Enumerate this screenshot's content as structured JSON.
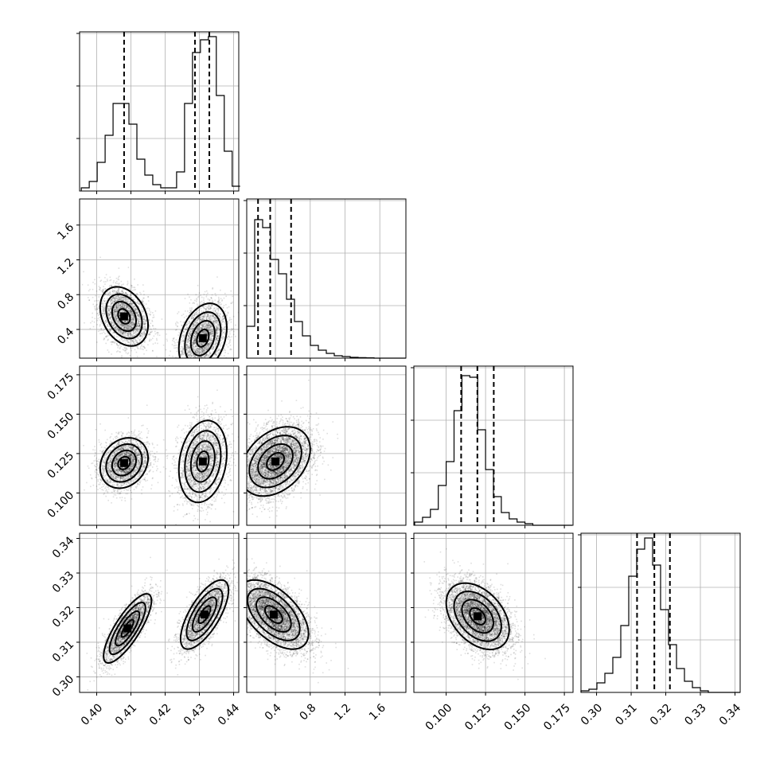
{
  "chart_data": {
    "type": "corner",
    "parameters": [
      {
        "id": "p0",
        "range": [
          0.395,
          0.4415
        ],
        "ticks": [
          "0.40",
          "0.41",
          "0.42",
          "0.43",
          "0.44"
        ],
        "hist_edges_start": 0.3955,
        "hist_bin_width": 0.00232,
        "hist_counts": [
          0.02,
          0.06,
          0.18,
          0.35,
          0.55,
          0.55,
          0.42,
          0.2,
          0.1,
          0.04,
          0.02,
          0.02,
          0.12,
          0.55,
          0.87,
          0.95,
          0.97,
          0.6,
          0.25,
          0.03
        ],
        "quantiles": [
          0.408,
          0.4287,
          0.4329
        ]
      },
      {
        "id": "p1",
        "range": [
          0.07,
          1.9
        ],
        "ticks": [
          "0.4",
          "0.8",
          "1.2",
          "1.6"
        ],
        "hist_edges_start": 0.07,
        "hist_bin_width": 0.0915,
        "hist_counts": [
          0.2,
          0.87,
          0.82,
          0.62,
          0.53,
          0.37,
          0.23,
          0.14,
          0.08,
          0.05,
          0.03,
          0.015,
          0.01,
          0.005,
          0.003,
          0.002,
          0,
          0,
          0,
          0
        ],
        "quantiles": [
          0.2,
          0.34,
          0.58
        ]
      },
      {
        "id": "p2",
        "range": [
          0.0795,
          0.1805
        ],
        "ticks": [
          "0.100",
          "0.125",
          "0.150",
          "0.175"
        ],
        "hist_edges_start": 0.08,
        "hist_bin_width": 0.005,
        "hist_counts": [
          0.02,
          0.05,
          0.1,
          0.25,
          0.4,
          0.72,
          0.94,
          0.93,
          0.6,
          0.35,
          0.18,
          0.08,
          0.04,
          0.02,
          0.01,
          0,
          0,
          0,
          0,
          0
        ],
        "quantiles": [
          0.1095,
          0.1198,
          0.1302
        ]
      },
      {
        "id": "p3",
        "range": [
          0.2955,
          0.3415
        ],
        "ticks": [
          "0.30",
          "0.31",
          "0.32",
          "0.33",
          "0.34"
        ],
        "hist_edges_start": 0.2955,
        "hist_bin_width": 0.0023,
        "hist_counts": [
          0.01,
          0.02,
          0.06,
          0.12,
          0.22,
          0.42,
          0.73,
          0.9,
          0.97,
          0.8,
          0.52,
          0.3,
          0.15,
          0.07,
          0.03,
          0.01,
          0,
          0,
          0,
          0
        ],
        "quantiles": [
          0.3117,
          0.3167,
          0.3212
        ]
      }
    ],
    "hist_y_ticks": 3,
    "grid": true,
    "pairs": [
      {
        "row": 1,
        "col": 0,
        "clusters": [
          {
            "mx": 0.408,
            "my": 0.55,
            "sx": 0.0035,
            "sy": 0.17,
            "rho": -0.3,
            "n": 2600
          },
          {
            "mx": 0.431,
            "my": 0.3,
            "sx": 0.0035,
            "sy": 0.2,
            "rho": 0.3,
            "n": 2600
          }
        ]
      },
      {
        "row": 2,
        "col": 0,
        "clusters": [
          {
            "mx": 0.408,
            "my": 0.119,
            "sx": 0.0035,
            "sy": 0.008,
            "rho": 0.2,
            "n": 2600
          },
          {
            "mx": 0.431,
            "my": 0.12,
            "sx": 0.0035,
            "sy": 0.013,
            "rho": 0.2,
            "n": 2600
          }
        ]
      },
      {
        "row": 2,
        "col": 1,
        "clusters": [
          {
            "mx": 0.4,
            "my": 0.12,
            "sx": 0.2,
            "sy": 0.011,
            "rho": 0.35,
            "n": 5200
          }
        ]
      },
      {
        "row": 3,
        "col": 0,
        "clusters": [
          {
            "mx": 0.409,
            "my": 0.314,
            "sx": 0.0035,
            "sy": 0.005,
            "rho": 0.8,
            "n": 2600
          },
          {
            "mx": 0.4315,
            "my": 0.318,
            "sx": 0.0035,
            "sy": 0.005,
            "rho": 0.7,
            "n": 2600
          }
        ]
      },
      {
        "row": 3,
        "col": 1,
        "clusters": [
          {
            "mx": 0.38,
            "my": 0.318,
            "sx": 0.2,
            "sy": 0.005,
            "rho": -0.55,
            "n": 5200
          }
        ]
      },
      {
        "row": 3,
        "col": 2,
        "clusters": [
          {
            "mx": 0.12,
            "my": 0.3175,
            "sx": 0.01,
            "sy": 0.0048,
            "rho": -0.4,
            "n": 5200
          }
        ]
      }
    ]
  }
}
